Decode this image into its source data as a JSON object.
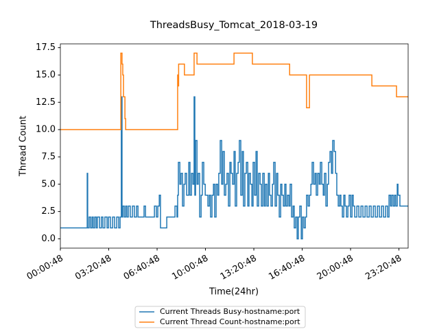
{
  "chart_data": {
    "type": "line",
    "drawstyle": "steps-post",
    "title": "ThreadsBusy_Tomcat_2018-03-19",
    "x_label": "Time(24hr)",
    "y_label": "Thread Count",
    "xlim": [
      0,
      1438
    ],
    "ylim": [
      -0.85,
      17.85
    ],
    "xticks": [
      {
        "value": 0,
        "label": "00:00:48"
      },
      {
        "value": 200,
        "label": "03:20:48"
      },
      {
        "value": 400,
        "label": "06:40:48"
      },
      {
        "value": 600,
        "label": "10:00:48"
      },
      {
        "value": 800,
        "label": "13:20:48"
      },
      {
        "value": 1000,
        "label": "16:40:48"
      },
      {
        "value": 1200,
        "label": "20:00:48"
      },
      {
        "value": 1400,
        "label": "23:20:48"
      }
    ],
    "yticks": [
      {
        "value": 0,
        "label": "0.0"
      },
      2.5,
      {
        "value": 5,
        "label": "5.0"
      },
      7.5,
      {
        "value": 10,
        "label": "10.0"
      },
      12.5,
      {
        "value": 15,
        "label": "15.0"
      },
      17.5
    ],
    "legend": "below",
    "series": [
      {
        "name": "Current Threads Busy-hostname:port",
        "color": "#1f77b4",
        "x": [
          0,
          108,
          111,
          113,
          119,
          125,
          131,
          136,
          142,
          148,
          153,
          162,
          170,
          176,
          184,
          193,
          199,
          207,
          216,
          224,
          233,
          241,
          247,
          252,
          255,
          258,
          264,
          270,
          275,
          281,
          289,
          298,
          306,
          315,
          321,
          346,
          352,
          374,
          389,
          397,
          403,
          409,
          414,
          440,
          465,
          474,
          482,
          485,
          488,
          494,
          499,
          505,
          511,
          516,
          522,
          531,
          536,
          542,
          548,
          553,
          556,
          559,
          565,
          570,
          576,
          582,
          587,
          593,
          599,
          604,
          610,
          616,
          621,
          627,
          633,
          638,
          644,
          650,
          655,
          661,
          667,
          672,
          678,
          684,
          689,
          695,
          701,
          706,
          712,
          718,
          723,
          729,
          735,
          740,
          746,
          752,
          757,
          763,
          769,
          775,
          780,
          786,
          792,
          797,
          803,
          809,
          814,
          820,
          826,
          831,
          837,
          843,
          848,
          854,
          860,
          865,
          871,
          877,
          882,
          888,
          894,
          899,
          905,
          911,
          916,
          922,
          928,
          933,
          939,
          945,
          950,
          956,
          962,
          967,
          973,
          979,
          984,
          990,
          996,
          1001,
          1007,
          1013,
          1018,
          1024,
          1030,
          1036,
          1041,
          1047,
          1053,
          1058,
          1064,
          1070,
          1075,
          1081,
          1087,
          1092,
          1098,
          1104,
          1109,
          1115,
          1121,
          1126,
          1132,
          1138,
          1143,
          1149,
          1155,
          1160,
          1166,
          1172,
          1177,
          1183,
          1189,
          1194,
          1200,
          1206,
          1211,
          1217,
          1226,
          1234,
          1243,
          1251,
          1260,
          1268,
          1277,
          1285,
          1294,
          1302,
          1311,
          1319,
          1328,
          1336,
          1345,
          1353,
          1359,
          1365,
          1370,
          1376,
          1382,
          1387,
          1393,
          1396,
          1404,
          1438
        ],
        "values": [
          1,
          1,
          6,
          1,
          2,
          1,
          2,
          1,
          2,
          1,
          2,
          1,
          2,
          1,
          2,
          1,
          2,
          1,
          2,
          1,
          2,
          1,
          2,
          13,
          2,
          3,
          2,
          3,
          2,
          3,
          2,
          3,
          2,
          3,
          2,
          3,
          2,
          2,
          3,
          2,
          3,
          4,
          1,
          2,
          2,
          3,
          2,
          4,
          7,
          5,
          6,
          3,
          5,
          6,
          4,
          7,
          4,
          6,
          5,
          13,
          4,
          9,
          5,
          6,
          2,
          4,
          7,
          5,
          4,
          4,
          3,
          4,
          2,
          4,
          5,
          2,
          5,
          4,
          6,
          9,
          5,
          8,
          4,
          5,
          6,
          3,
          7,
          6,
          5,
          8,
          3,
          6,
          7,
          9,
          4,
          8,
          3,
          6,
          7,
          3,
          6,
          5,
          3,
          7,
          4,
          8,
          3,
          6,
          5,
          3,
          6,
          3,
          5,
          3,
          6,
          4,
          3,
          5,
          7,
          3,
          6,
          4,
          2,
          5,
          4,
          3,
          5,
          3,
          4,
          3,
          5,
          2,
          3,
          1,
          2,
          0,
          2,
          3,
          0,
          2,
          1,
          2,
          4,
          3,
          4,
          5,
          7,
          5,
          6,
          4,
          6,
          5,
          7,
          5,
          4,
          6,
          3,
          5,
          7,
          8,
          6,
          9,
          8,
          6,
          4,
          3,
          4,
          3,
          2,
          4,
          3,
          2,
          3,
          4,
          2,
          4,
          3,
          2,
          3,
          2,
          3,
          2,
          3,
          2,
          3,
          2,
          3,
          2,
          3,
          2,
          3,
          2,
          3,
          2,
          4,
          3,
          4,
          3,
          4,
          3,
          5,
          4,
          3,
          3
        ]
      },
      {
        "name": "Current Thread Count-hostname:port",
        "color": "#ff7f0e",
        "x": [
          0,
          250,
          252,
          255,
          258,
          261,
          264,
          267,
          270,
          275,
          485,
          487,
          489,
          491,
          513,
          553,
          565,
          718,
          794,
          948,
          1018,
          1030,
          1288,
          1390,
          1438
        ],
        "values": [
          10,
          17,
          17,
          16,
          15,
          13,
          13,
          11,
          10,
          10,
          15,
          14,
          16,
          16,
          15,
          17,
          16,
          17,
          16,
          15,
          12,
          15,
          14,
          13,
          13
        ]
      }
    ]
  }
}
